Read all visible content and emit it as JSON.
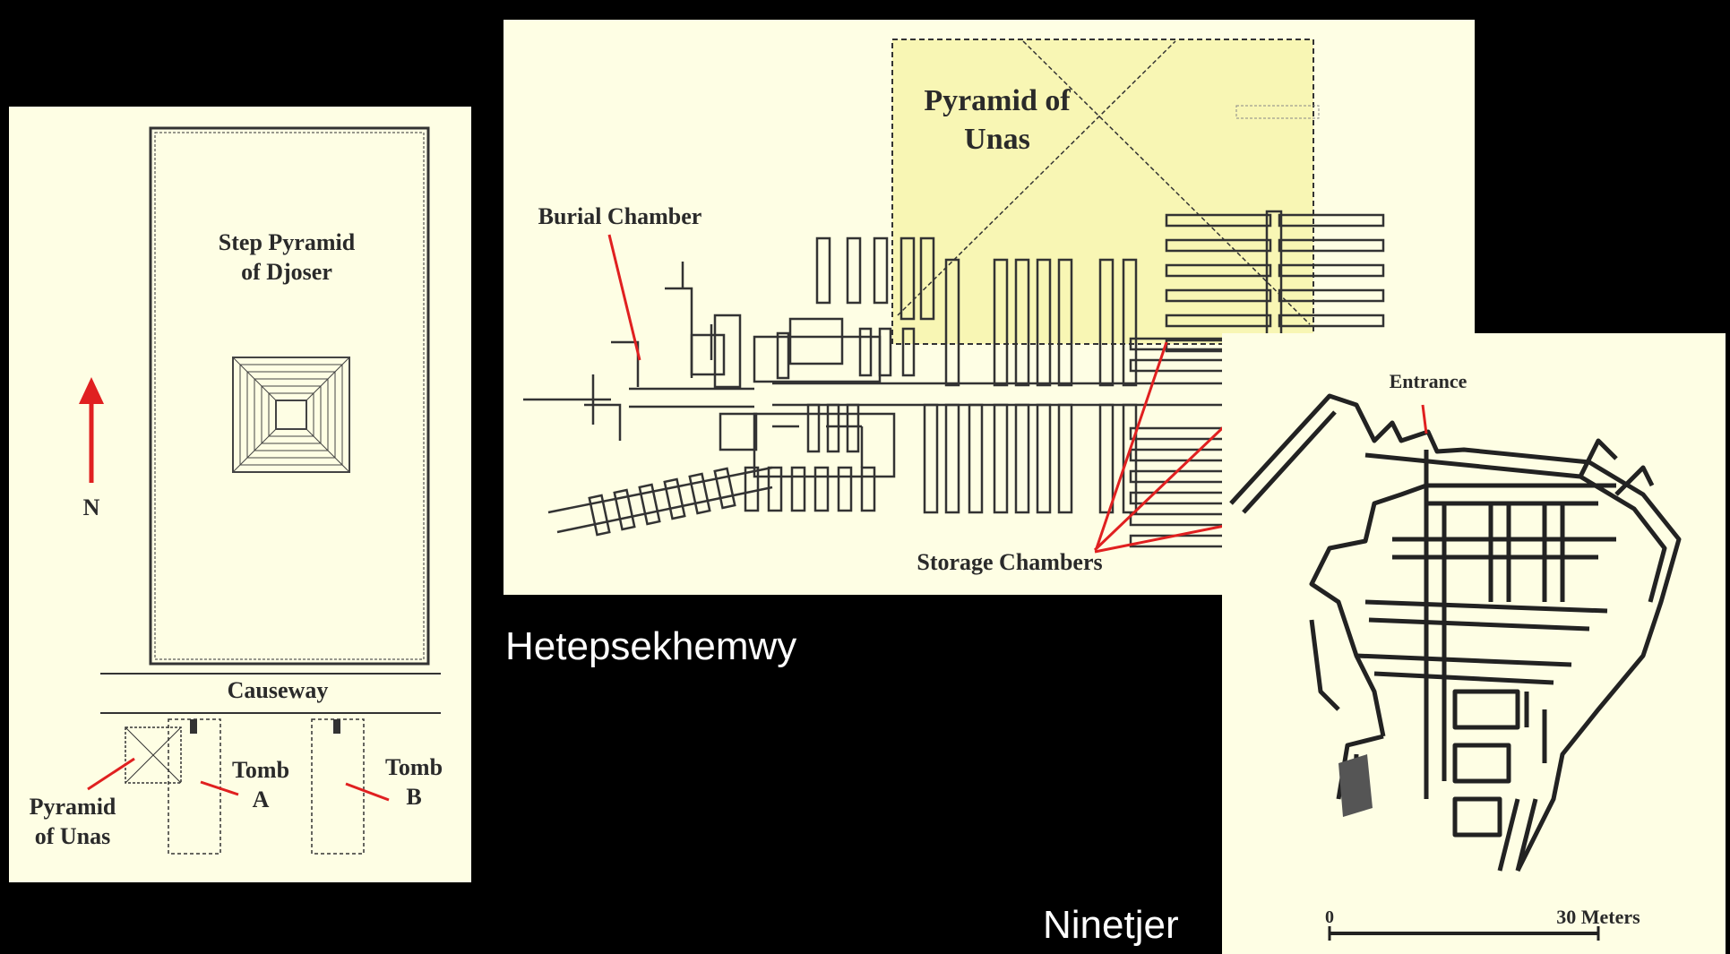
{
  "djoser_panel": {
    "pyramid_label": [
      "Step Pyramid",
      "of Djoser"
    ],
    "north_label": "N",
    "causeway_label": "Causeway",
    "tomb_a_label": [
      "Tomb",
      "A"
    ],
    "tomb_b_label": [
      "Tomb",
      "B"
    ],
    "unas_label": [
      "Pyramid",
      "of Unas"
    ]
  },
  "hetepsekhemwy_panel": {
    "pyramid_label": [
      "Pyramid of",
      "Unas"
    ],
    "burial_chamber_label": "Burial Chamber",
    "storage_chambers_label": "Storage Chambers",
    "caption": "Hetepsekhemwy"
  },
  "ninetjer_panel": {
    "entrance_label": "Entrance",
    "scale_start": "0",
    "scale_end": "30 Meters",
    "caption": "Ninetjer"
  },
  "colors": {
    "background": "#000000",
    "panel": "#fefee4",
    "pyramid_highlight": "#f8f6b4",
    "pointer": "#e02020"
  }
}
